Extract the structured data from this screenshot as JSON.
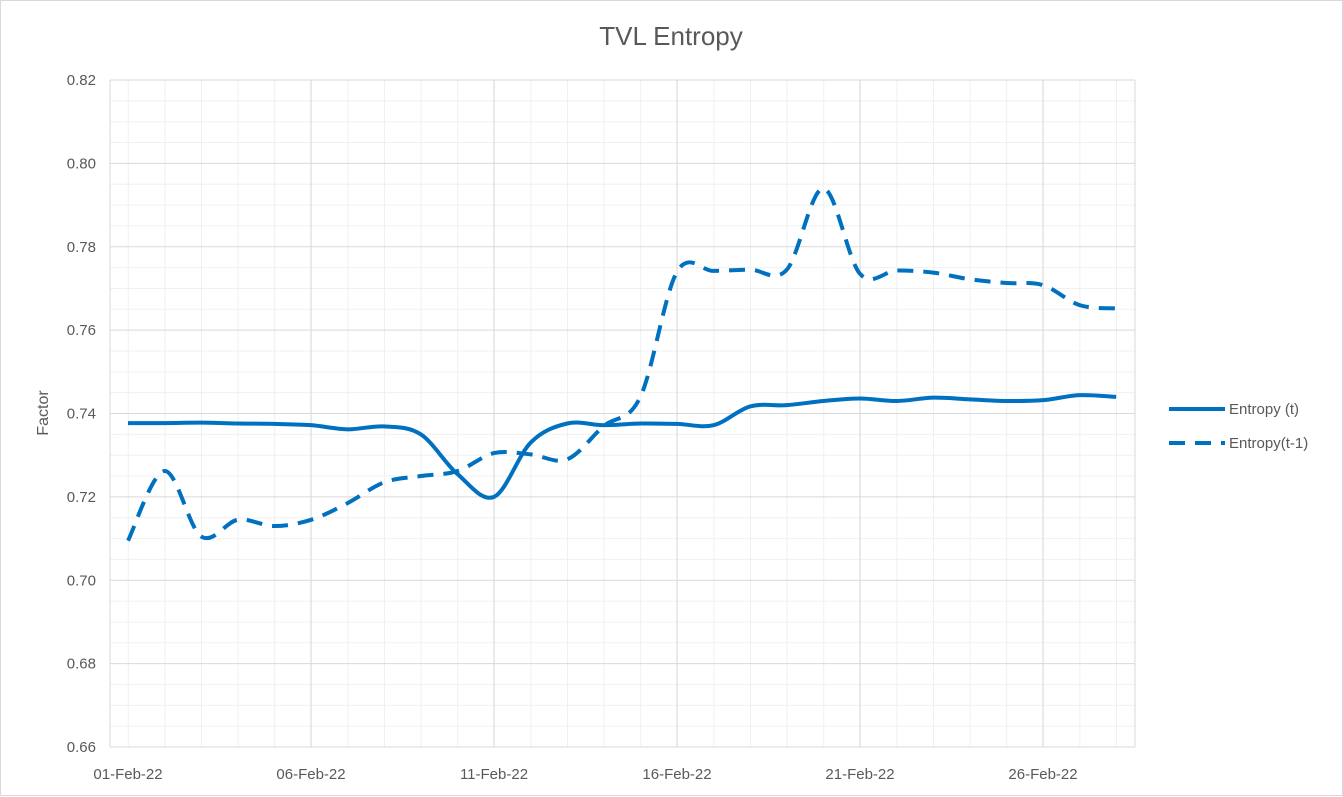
{
  "chart_data": {
    "type": "line",
    "title": "TVL Entropy",
    "xlabel": "",
    "ylabel": "Factor",
    "ylim": [
      0.66,
      0.82
    ],
    "yticks": [
      "0.66",
      "0.68",
      "0.70",
      "0.72",
      "0.74",
      "0.76",
      "0.78",
      "0.80",
      "0.82"
    ],
    "xtick_labels": [
      "01-Feb-22",
      "06-Feb-22",
      "11-Feb-22",
      "16-Feb-22",
      "21-Feb-22",
      "26-Feb-22"
    ],
    "x": [
      "01-Feb-22",
      "02-Feb-22",
      "03-Feb-22",
      "04-Feb-22",
      "05-Feb-22",
      "06-Feb-22",
      "07-Feb-22",
      "08-Feb-22",
      "09-Feb-22",
      "10-Feb-22",
      "11-Feb-22",
      "12-Feb-22",
      "13-Feb-22",
      "14-Feb-22",
      "15-Feb-22",
      "16-Feb-22",
      "17-Feb-22",
      "18-Feb-22",
      "19-Feb-22",
      "20-Feb-22",
      "21-Feb-22",
      "22-Feb-22",
      "23-Feb-22",
      "24-Feb-22",
      "25-Feb-22",
      "26-Feb-22",
      "27-Feb-22",
      "28-Feb-22"
    ],
    "grid": true,
    "legend_position": "right",
    "color": "#0070C0",
    "series": [
      {
        "name": "Entropy (t)",
        "style": "solid",
        "values": [
          0.7377,
          0.7377,
          0.7378,
          0.7376,
          0.7375,
          0.7372,
          0.7362,
          0.7369,
          0.735,
          0.7255,
          0.72,
          0.733,
          0.7376,
          0.7372,
          0.7376,
          0.7375,
          0.7372,
          0.7417,
          0.742,
          0.743,
          0.7436,
          0.743,
          0.7438,
          0.7434,
          0.743,
          0.7432,
          0.7444,
          0.744
        ]
      },
      {
        "name": "Entropy(t-1)",
        "style": "dashed",
        "values": [
          0.7095,
          0.7262,
          0.7105,
          0.7145,
          0.713,
          0.7145,
          0.7185,
          0.7235,
          0.725,
          0.7262,
          0.7305,
          0.7302,
          0.729,
          0.737,
          0.744,
          0.774,
          0.7742,
          0.7745,
          0.7745,
          0.794,
          0.7735,
          0.7743,
          0.7738,
          0.7722,
          0.7713,
          0.7708,
          0.766,
          0.7652
        ]
      }
    ]
  }
}
